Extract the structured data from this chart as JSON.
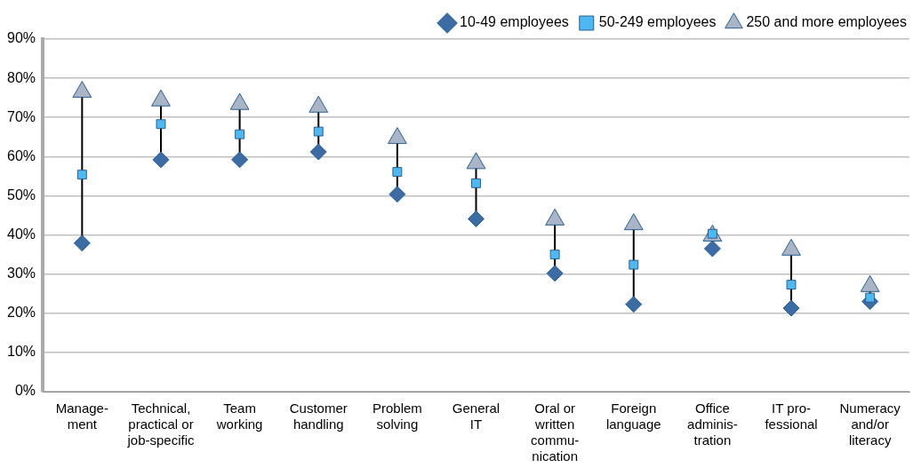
{
  "chart_data": {
    "type": "scatter",
    "categories": [
      "Manage-\nment",
      "Technical,\npractical or\njob-specific",
      "Team\nworking",
      "Customer\nhandling",
      "Problem\nsolving",
      "General\nIT",
      "Oral or\nwritten\ncommu-\nnication",
      "Foreign\nlanguage",
      "Office\nadminis-\ntration",
      "IT pro-\nfessional",
      "Numeracy\nand/or\nliteracy"
    ],
    "series": [
      {
        "name": "10-49 employees",
        "color": "#3d6ba3",
        "marker": "diamond",
        "values": [
          37.9,
          59.2,
          59.2,
          61.2,
          50.4,
          44.1,
          30.2,
          22.3,
          36.5,
          21.3,
          23.0
        ]
      },
      {
        "name": "50-249 employees",
        "color": "#4fb8f0",
        "marker": "square",
        "values": [
          55.4,
          68.3,
          65.7,
          66.4,
          56.1,
          53.2,
          35.0,
          32.4,
          40.3,
          27.3,
          24.0
        ]
      },
      {
        "name": "250 and more employees",
        "color": "#a9b5c6",
        "marker": "triangle",
        "values": [
          76.5,
          74.3,
          73.4,
          72.7,
          64.7,
          58.3,
          43.9,
          42.7,
          39.8,
          36.2,
          26.9
        ]
      }
    ],
    "ylim": [
      0,
      90
    ],
    "yticks": [
      {
        "value": 0,
        "label": "0%"
      },
      {
        "value": 10,
        "label": "10%"
      },
      {
        "value": 20,
        "label": "20%"
      },
      {
        "value": 30,
        "label": "30%"
      },
      {
        "value": 40,
        "label": "40%"
      },
      {
        "value": 50,
        "label": "50%"
      },
      {
        "value": 60,
        "label": "60%"
      },
      {
        "value": 70,
        "label": "70%"
      },
      {
        "value": 80,
        "label": "80%"
      },
      {
        "value": 90,
        "label": "90%"
      }
    ],
    "grid": "y",
    "legend": "top right"
  }
}
